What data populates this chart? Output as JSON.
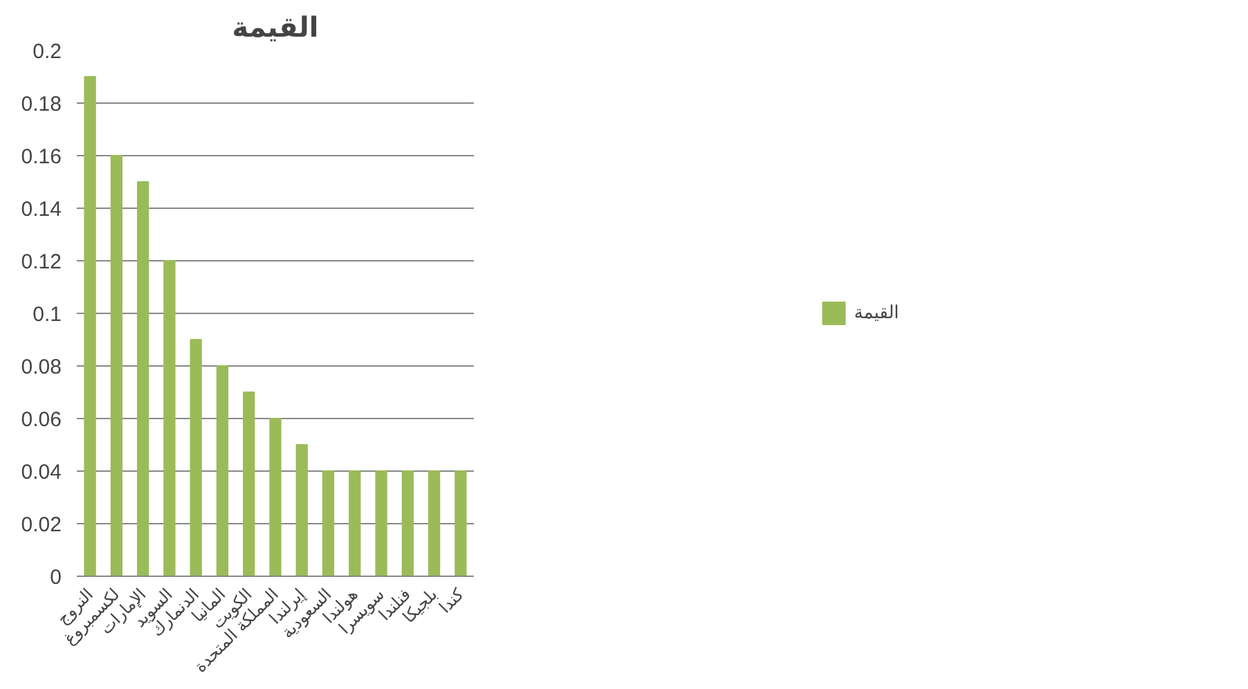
{
  "chart_data": {
    "type": "bar",
    "title": "القيمة",
    "categories": [
      "النروج",
      "لكسمبروغ",
      "الإمارات",
      "السويد",
      "الدنمارك",
      "المانيا",
      "الكويت",
      "المملكة المتحدة",
      "إيرلندا",
      "السعودية",
      "هولندا",
      "سويسرا",
      "فنلندا",
      "بلجيكا",
      "كندا"
    ],
    "series": [
      {
        "name": "القيمة",
        "color": "#9bbb59",
        "values": [
          0.19,
          0.16,
          0.15,
          0.12,
          0.09,
          0.08,
          0.07,
          0.06,
          0.05,
          0.04,
          0.04,
          0.04,
          0.04,
          0.04,
          0.04
        ]
      }
    ],
    "ylim": [
      0,
      0.2
    ],
    "yticks": [
      0,
      0.02,
      0.04,
      0.06,
      0.08,
      0.1,
      0.12,
      0.14,
      0.16,
      0.18,
      0.2
    ],
    "grid": "y",
    "legend": "right"
  }
}
